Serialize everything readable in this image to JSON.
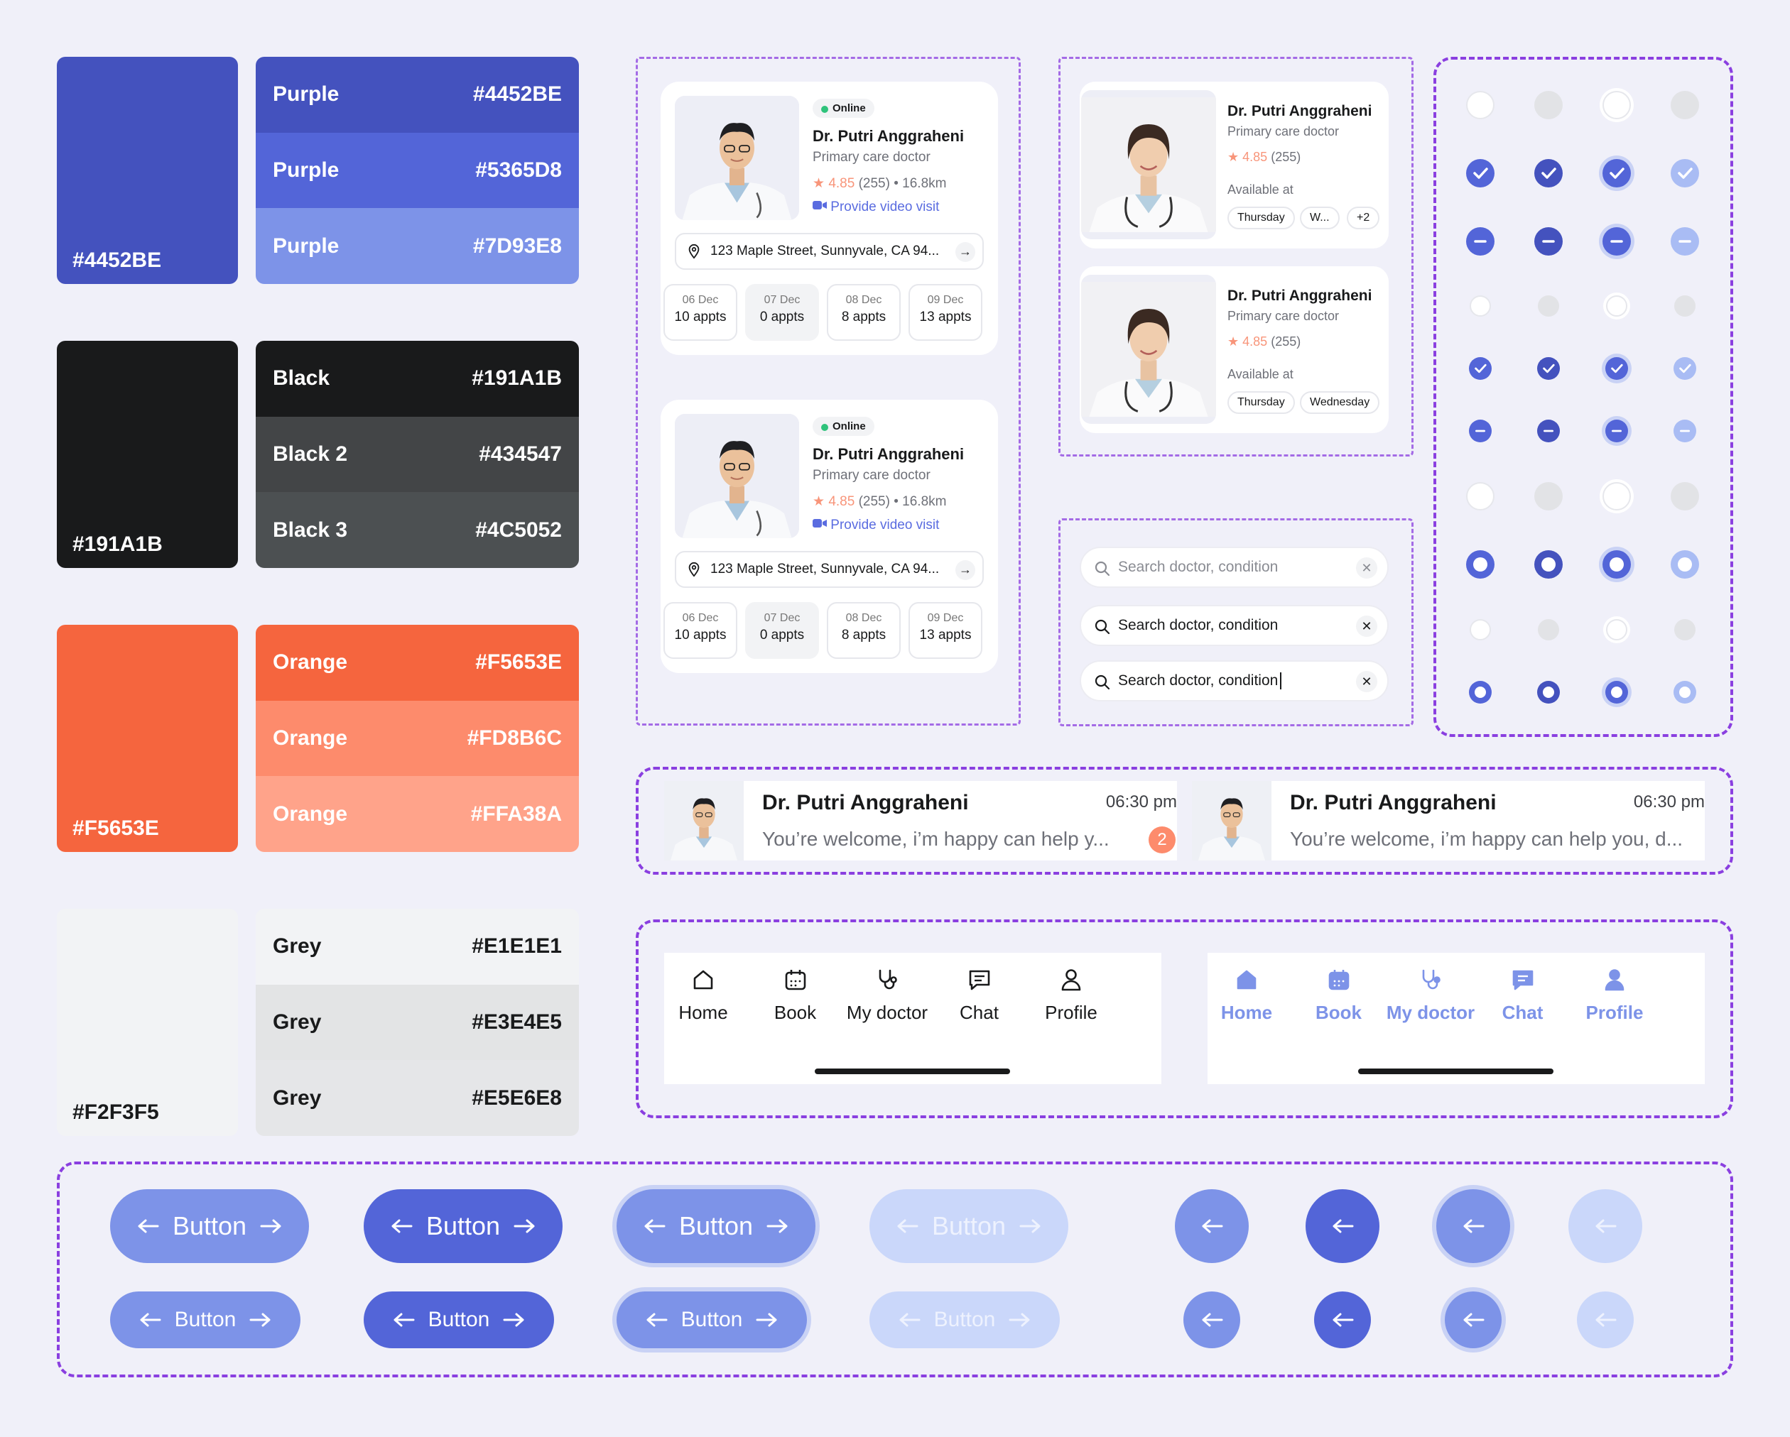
{
  "palette": {
    "purple": {
      "main": "#4452BE",
      "rows": [
        {
          "name": "Purple",
          "hex": "#4452BE",
          "color": "#4452BE"
        },
        {
          "name": "Purple",
          "hex": "#5365D8",
          "color": "#5365D8"
        },
        {
          "name": "Purple",
          "hex": "#7D93E8",
          "color": "#7D93E8"
        }
      ]
    },
    "black": {
      "main": "#191A1B",
      "rows": [
        {
          "name": "Black",
          "hex": "#191A1B",
          "color": "#191A1B"
        },
        {
          "name": "Black 2",
          "hex": "#434547",
          "color": "#434547"
        },
        {
          "name": "Black 3",
          "hex": "#4C5052",
          "color": "#4C5052"
        }
      ]
    },
    "orange": {
      "main": "#F5653E",
      "rows": [
        {
          "name": "Orange",
          "hex": "#F5653E",
          "color": "#F5653E"
        },
        {
          "name": "Orange",
          "hex": "#FD8B6C",
          "color": "#FD8B6C"
        },
        {
          "name": "Orange",
          "hex": "#FFA38A",
          "color": "#FFA38A"
        }
      ]
    },
    "grey": {
      "main": "#F2F3F5",
      "rows": [
        {
          "name": "Grey",
          "hex": "#E1E1E1",
          "color": "#F2F3F5"
        },
        {
          "name": "Grey",
          "hex": "#E3E4E5",
          "color": "#E3E4E5"
        },
        {
          "name": "Grey",
          "hex": "#E5E6E8",
          "color": "#E5E6E8"
        }
      ]
    }
  },
  "doctor_card": {
    "status": "Online",
    "name": "Dr. Putri Anggraheni",
    "role": "Primary care doctor",
    "rating": "4.85",
    "reviews": "(255)",
    "distance": "16.8km",
    "video": "Provide video visit",
    "address": "123 Maple Street, Sunnyvale, CA 94...",
    "dates": [
      {
        "day": "06 Dec",
        "appts": "10 appts"
      },
      {
        "day": "07 Dec",
        "appts": "0 appts"
      },
      {
        "day": "08 Dec",
        "appts": "8 appts"
      },
      {
        "day": "09 Dec",
        "appts": "13 appts"
      }
    ]
  },
  "doctor_small": {
    "name": "Dr. Putri Anggraheni",
    "role": "Primary care doctor",
    "rating": "4.85",
    "reviews": "(255)",
    "available": "Available at",
    "chips1": [
      "Thursday",
      "W...",
      "+2"
    ],
    "chips2": [
      "Thursday",
      "Wednesday"
    ]
  },
  "search": {
    "placeholder": "Search doctor, condition",
    "typed": "Search doctor, condition"
  },
  "chat": {
    "name": "Dr. Putri Anggraheni",
    "time": "06:30 pm",
    "msg_short": "You’re welcome, i’m happy can help y...",
    "msg_long": "You’re welcome, i’m happy can help you, d...",
    "badge": "2"
  },
  "nav": {
    "items": [
      "Home",
      "Book",
      "My doctor",
      "Chat",
      "Profile"
    ],
    "icons": [
      "home-icon",
      "calendar-icon",
      "stethoscope-icon",
      "chat-icon",
      "profile-icon"
    ]
  },
  "buttons": {
    "label": "Button"
  },
  "colors": {
    "accent": "#5365D8",
    "accent_light": "#7D93E8",
    "disabled": "#CAD7FA",
    "dark": "#4452BE",
    "star": "#F8957A",
    "online": "#2FC37B"
  }
}
